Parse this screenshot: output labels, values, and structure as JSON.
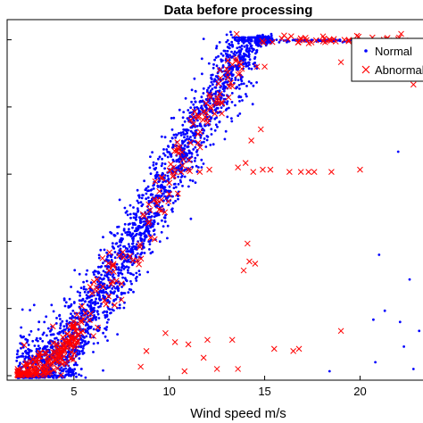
{
  "chart_data": {
    "type": "scatter",
    "title": "Data before processing",
    "xlabel": "Wind speed m/s",
    "ylabel": "",
    "xlim": [
      1.5,
      23.3
    ],
    "ylim": [
      -20,
      1590
    ],
    "xticks": [
      5,
      10,
      15,
      20
    ],
    "grid": false,
    "legend_position": "top-right",
    "series": [
      {
        "name": "Normal",
        "marker": "dot",
        "color": "#0000ff",
        "curve": {
          "start_x": 2.0,
          "rated_x": 14.6,
          "rated_y": 1500,
          "spread": 90,
          "count": 2400
        }
      },
      {
        "name": "Abnormal",
        "marker": "x",
        "color": "#ff0000",
        "clusters": [
          {
            "x": [
              2.0,
              5.2
            ],
            "y_mode": "curve",
            "count": 180,
            "spread": 40
          },
          {
            "x": [
              5.2,
              13.8
            ],
            "y_mode": "curve",
            "count": 140,
            "spread": 70
          },
          {
            "x": [
              14.5,
              22.5
            ],
            "y": 1500,
            "count": 45,
            "spread": 8
          }
        ],
        "points": [
          {
            "x": 13.8,
            "y": 1370
          },
          {
            "x": 14.6,
            "y": 1380
          },
          {
            "x": 15.0,
            "y": 1380
          },
          {
            "x": 19.0,
            "y": 1400
          },
          {
            "x": 22.8,
            "y": 1300
          },
          {
            "x": 14.8,
            "y": 1100
          },
          {
            "x": 14.3,
            "y": 1050
          },
          {
            "x": 14.0,
            "y": 950
          },
          {
            "x": 13.6,
            "y": 930
          },
          {
            "x": 14.4,
            "y": 910
          },
          {
            "x": 14.9,
            "y": 920
          },
          {
            "x": 15.3,
            "y": 920
          },
          {
            "x": 16.3,
            "y": 910
          },
          {
            "x": 16.9,
            "y": 910
          },
          {
            "x": 17.3,
            "y": 910
          },
          {
            "x": 17.6,
            "y": 910
          },
          {
            "x": 18.5,
            "y": 910
          },
          {
            "x": 20.0,
            "y": 920
          },
          {
            "x": 10.3,
            "y": 910
          },
          {
            "x": 11.0,
            "y": 920
          },
          {
            "x": 11.6,
            "y": 910
          },
          {
            "x": 12.1,
            "y": 920
          },
          {
            "x": 14.1,
            "y": 590
          },
          {
            "x": 14.2,
            "y": 510
          },
          {
            "x": 14.5,
            "y": 500
          },
          {
            "x": 13.9,
            "y": 470
          },
          {
            "x": 19.0,
            "y": 200
          },
          {
            "x": 9.8,
            "y": 190
          },
          {
            "x": 10.3,
            "y": 150
          },
          {
            "x": 11.0,
            "y": 140
          },
          {
            "x": 12.0,
            "y": 160
          },
          {
            "x": 13.3,
            "y": 160
          },
          {
            "x": 15.5,
            "y": 120
          },
          {
            "x": 16.8,
            "y": 120
          },
          {
            "x": 8.8,
            "y": 110
          },
          {
            "x": 8.5,
            "y": 40
          },
          {
            "x": 10.8,
            "y": 20
          },
          {
            "x": 12.5,
            "y": 30
          },
          {
            "x": 13.6,
            "y": 30
          },
          {
            "x": 16.5,
            "y": 110
          },
          {
            "x": 11.8,
            "y": 80
          }
        ]
      }
    ],
    "extra_normal_points": [
      {
        "x": 20.7,
        "y": 250
      },
      {
        "x": 21.3,
        "y": 290
      },
      {
        "x": 22.1,
        "y": 240
      },
      {
        "x": 22.3,
        "y": 130
      },
      {
        "x": 23.0,
        "y": 1320
      },
      {
        "x": 22.6,
        "y": 430
      },
      {
        "x": 22.0,
        "y": 1000
      },
      {
        "x": 21.0,
        "y": 540
      },
      {
        "x": 23.1,
        "y": 200
      },
      {
        "x": 22.8,
        "y": 30
      },
      {
        "x": 20.8,
        "y": 60
      },
      {
        "x": 18.4,
        "y": 20
      }
    ]
  },
  "legend": {
    "normal_label": "Normal",
    "abnormal_label": "Abnormal"
  }
}
